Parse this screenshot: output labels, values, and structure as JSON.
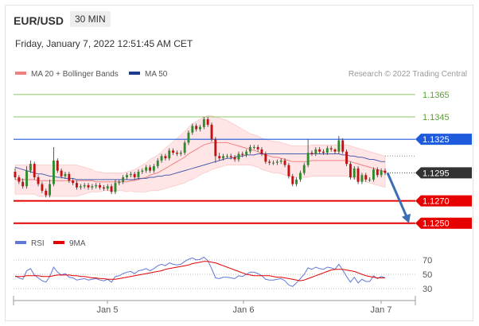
{
  "header": {
    "symbol": "EUR/USD",
    "timeframe": "30 MIN",
    "datetime": "Friday, January 7, 2022 12:51:45 AM CET"
  },
  "colors": {
    "bull": "#2e8b2e",
    "bear": "#c41010",
    "ma20": "#f08080",
    "bollinger_fill": "#ffdcdc",
    "ma50": "#4a5fb0",
    "resistance": "#8cc864",
    "pivot": "#1e5adc",
    "support": "#e60000",
    "current": "#333333",
    "arrow": "#3c6eb4",
    "rsi": "#6078d8",
    "ma9": "#e60000"
  },
  "chart_data": [
    {
      "type": "candlestick",
      "legend": [
        {
          "label": "MA 20 + Bollinger Bands",
          "color": "#f08080"
        },
        {
          "label": "MA 50",
          "color": "#1e3c8c"
        }
      ],
      "credit": "Research © 2022 Trading Central",
      "x_ticks": [
        "Jan 5",
        "Jan 6",
        "Jan 7"
      ],
      "ylim": [
        1.1242,
        1.1377
      ],
      "levels": [
        {
          "value": 1.1365,
          "label": "1.1365",
          "kind": "resistance"
        },
        {
          "value": 1.1345,
          "label": "1.1345",
          "kind": "resistance"
        },
        {
          "value": 1.1325,
          "label": "1.1325",
          "kind": "pivot"
        },
        {
          "value": 1.1295,
          "label": "1.1295",
          "kind": "current"
        },
        {
          "value": 1.127,
          "label": "1.1270",
          "kind": "support"
        },
        {
          "value": 1.125,
          "label": "1.1250",
          "kind": "support"
        }
      ],
      "close": [
        1.1291,
        1.1287,
        1.1283,
        1.1297,
        1.1303,
        1.1291,
        1.1285,
        1.1279,
        1.1275,
        1.1285,
        1.1306,
        1.1297,
        1.1292,
        1.1294,
        1.1288,
        1.1286,
        1.1282,
        1.1283,
        1.1284,
        1.1282,
        1.1283,
        1.1284,
        1.1282,
        1.1281,
        1.1283,
        1.1278,
        1.1286,
        1.1287,
        1.1291,
        1.1293,
        1.1294,
        1.1291,
        1.1296,
        1.1297,
        1.13,
        1.1297,
        1.1301,
        1.1306,
        1.131,
        1.1308,
        1.1315,
        1.1313,
        1.1312,
        1.1313,
        1.1322,
        1.1331,
        1.1337,
        1.1334,
        1.1336,
        1.1343,
        1.1338,
        1.1325,
        1.131,
        1.1308,
        1.131,
        1.131,
        1.1309,
        1.1307,
        1.1312,
        1.1311,
        1.1314,
        1.1318,
        1.1318,
        1.1316,
        1.1312,
        1.1305,
        1.1304,
        1.1304,
        1.1305,
        1.1306,
        1.1302,
        1.1292,
        1.1285,
        1.1289,
        1.1295,
        1.1302,
        1.1313,
        1.1312,
        1.1316,
        1.1314,
        1.1313,
        1.1317,
        1.1316,
        1.1314,
        1.1324,
        1.1314,
        1.1303,
        1.1291,
        1.1299,
        1.1287,
        1.1293,
        1.1289,
        1.1289,
        1.1298,
        1.1293,
        1.1297,
        1.1295
      ],
      "open": [
        1.1296,
        1.1291,
        1.1287,
        1.1283,
        1.1297,
        1.1303,
        1.1291,
        1.1285,
        1.1279,
        1.1275,
        1.1285,
        1.1306,
        1.1297,
        1.1292,
        1.1294,
        1.1288,
        1.1286,
        1.1282,
        1.1283,
        1.1284,
        1.1282,
        1.1283,
        1.1284,
        1.1282,
        1.1281,
        1.1283,
        1.1278,
        1.1286,
        1.1287,
        1.1291,
        1.1293,
        1.1294,
        1.1291,
        1.1296,
        1.1297,
        1.13,
        1.1297,
        1.1301,
        1.1306,
        1.131,
        1.1308,
        1.1315,
        1.1313,
        1.1312,
        1.1313,
        1.1322,
        1.1331,
        1.1337,
        1.1334,
        1.1336,
        1.1343,
        1.1338,
        1.1325,
        1.131,
        1.1308,
        1.131,
        1.131,
        1.1309,
        1.1307,
        1.1312,
        1.1311,
        1.1314,
        1.1318,
        1.1318,
        1.1316,
        1.1312,
        1.1305,
        1.1304,
        1.1304,
        1.1305,
        1.1306,
        1.1302,
        1.1292,
        1.1285,
        1.1289,
        1.1295,
        1.1302,
        1.1313,
        1.1312,
        1.1316,
        1.1314,
        1.1313,
        1.1317,
        1.1316,
        1.1314,
        1.1324,
        1.1314,
        1.1303,
        1.1291,
        1.1299,
        1.1287,
        1.1293,
        1.1289,
        1.1289,
        1.1298,
        1.1293,
        1.1297
      ],
      "high": [
        1.1299,
        1.1293,
        1.129,
        1.1301,
        1.1306,
        1.1305,
        1.1293,
        1.1287,
        1.1281,
        1.1289,
        1.1318,
        1.1308,
        1.1299,
        1.1296,
        1.1296,
        1.129,
        1.1288,
        1.1285,
        1.1286,
        1.1286,
        1.1285,
        1.1286,
        1.1286,
        1.1284,
        1.1285,
        1.1285,
        1.1289,
        1.1289,
        1.1293,
        1.1295,
        1.1296,
        1.1296,
        1.1298,
        1.1299,
        1.1302,
        1.1302,
        1.1303,
        1.1308,
        1.1312,
        1.1312,
        1.1317,
        1.1317,
        1.1315,
        1.1315,
        1.1324,
        1.1333,
        1.1339,
        1.1339,
        1.1338,
        1.1345,
        1.1345,
        1.134,
        1.1327,
        1.1313,
        1.1312,
        1.1312,
        1.1312,
        1.1311,
        1.1314,
        1.1314,
        1.1316,
        1.132,
        1.132,
        1.132,
        1.1318,
        1.1314,
        1.1307,
        1.1306,
        1.1307,
        1.1308,
        1.1308,
        1.1304,
        1.1294,
        1.1291,
        1.1297,
        1.1304,
        1.1325,
        1.1315,
        1.1318,
        1.1318,
        1.1316,
        1.1319,
        1.1319,
        1.1317,
        1.1328,
        1.1326,
        1.1316,
        1.1305,
        1.1301,
        1.1301,
        1.1295,
        1.1295,
        1.1291,
        1.13,
        1.13,
        1.1299,
        1.1299
      ],
      "low": [
        1.1289,
        1.1285,
        1.1281,
        1.1281,
        1.1295,
        1.1289,
        1.1283,
        1.1277,
        1.1273,
        1.1273,
        1.1283,
        1.1295,
        1.129,
        1.129,
        1.1286,
        1.1284,
        1.128,
        1.128,
        1.1281,
        1.128,
        1.128,
        1.1281,
        1.128,
        1.1279,
        1.1279,
        1.1276,
        1.1276,
        1.1284,
        1.1285,
        1.1289,
        1.1291,
        1.1289,
        1.1289,
        1.1294,
        1.1295,
        1.1295,
        1.1295,
        1.1299,
        1.1304,
        1.1306,
        1.1306,
        1.1311,
        1.131,
        1.131,
        1.1311,
        1.132,
        1.1329,
        1.1332,
        1.1332,
        1.1334,
        1.1336,
        1.1323,
        1.1304,
        1.1306,
        1.1306,
        1.1308,
        1.1307,
        1.1305,
        1.1305,
        1.1309,
        1.1309,
        1.1312,
        1.1316,
        1.1314,
        1.131,
        1.1303,
        1.1302,
        1.1302,
        1.1302,
        1.1303,
        1.13,
        1.129,
        1.1283,
        1.1283,
        1.1287,
        1.1293,
        1.13,
        1.131,
        1.131,
        1.1312,
        1.1311,
        1.1311,
        1.1314,
        1.1312,
        1.1312,
        1.1312,
        1.1301,
        1.1289,
        1.1289,
        1.1285,
        1.1285,
        1.1287,
        1.1287,
        1.1287,
        1.1291,
        1.1291,
        1.1293
      ],
      "ma20": [
        1.1289,
        1.1289,
        1.1289,
        1.1289,
        1.1289,
        1.1289,
        1.1288,
        1.1288,
        1.1288,
        1.1288,
        1.1288,
        1.1288,
        1.1288,
        1.1288,
        1.1288,
        1.1288,
        1.1288,
        1.1288,
        1.1288,
        1.1288,
        1.1288,
        1.1287,
        1.1287,
        1.1287,
        1.1287,
        1.1287,
        1.1287,
        1.1287,
        1.1287,
        1.1287,
        1.1288,
        1.1288,
        1.1289,
        1.129,
        1.1291,
        1.1293,
        1.1294,
        1.1295,
        1.1297,
        1.1299,
        1.1301,
        1.1303,
        1.1305,
        1.1307,
        1.1309,
        1.1312,
        1.1314,
        1.1316,
        1.1318,
        1.132,
        1.1321,
        1.1322,
        1.1322,
        1.1322,
        1.1322,
        1.1322,
        1.1321,
        1.132,
        1.1319,
        1.1318,
        1.1317,
        1.1316,
        1.1315,
        1.1314,
        1.1312,
        1.1311,
        1.131,
        1.1309,
        1.1309,
        1.1308,
        1.1307,
        1.1306,
        1.1305,
        1.1305,
        1.1305,
        1.1305,
        1.1305,
        1.1306,
        1.1306,
        1.1306,
        1.1306,
        1.1306,
        1.1306,
        1.1306,
        1.1306,
        1.1306,
        1.1306,
        1.1305,
        1.1304,
        1.1303,
        1.1302,
        1.1301,
        1.13,
        1.1299,
        1.1298,
        1.1297,
        1.1296
      ],
      "bb_width": [
        0.0013,
        0.0013,
        0.0013,
        0.0013,
        0.0013,
        0.0013,
        0.0014,
        0.0014,
        0.0014,
        0.0014,
        0.0014,
        0.0014,
        0.0014,
        0.0014,
        0.0014,
        0.0014,
        0.0014,
        0.0013,
        0.0012,
        0.0011,
        0.001,
        0.0009,
        0.0009,
        0.0008,
        0.0008,
        0.0008,
        0.0008,
        0.0008,
        0.0008,
        0.0009,
        0.0009,
        0.001,
        0.0011,
        0.0012,
        0.0013,
        0.0014,
        0.0015,
        0.0016,
        0.0017,
        0.0018,
        0.0019,
        0.002,
        0.0021,
        0.0022,
        0.0023,
        0.0024,
        0.0025,
        0.0025,
        0.0025,
        0.0025,
        0.0025,
        0.0024,
        0.0023,
        0.0022,
        0.0021,
        0.002,
        0.0019,
        0.0018,
        0.0017,
        0.0016,
        0.0015,
        0.0014,
        0.0014,
        0.0014,
        0.0014,
        0.0014,
        0.0014,
        0.0014,
        0.0014,
        0.0014,
        0.0014,
        0.0014,
        0.0014,
        0.0014,
        0.0014,
        0.0014,
        0.0014,
        0.0014,
        0.0014,
        0.0014,
        0.0014,
        0.0014,
        0.0014,
        0.0014,
        0.0014,
        0.0014,
        0.0014,
        0.0014,
        0.0014,
        0.0014,
        0.0014,
        0.0014,
        0.0014,
        0.0014,
        0.0014,
        0.0014,
        0.0014
      ],
      "ma50": [
        1.13,
        1.1299,
        1.1298,
        1.1297,
        1.1296,
        1.1295,
        1.1294,
        1.1294,
        1.1293,
        1.1292,
        1.1292,
        1.1291,
        1.1291,
        1.129,
        1.129,
        1.129,
        1.1289,
        1.1289,
        1.1289,
        1.1289,
        1.1289,
        1.1289,
        1.1289,
        1.1289,
        1.1289,
        1.1289,
        1.1289,
        1.1289,
        1.1289,
        1.1289,
        1.1289,
        1.1289,
        1.129,
        1.129,
        1.129,
        1.1291,
        1.1291,
        1.1292,
        1.1292,
        1.1293,
        1.1293,
        1.1294,
        1.1295,
        1.1296,
        1.1297,
        1.1298,
        1.1299,
        1.13,
        1.1301,
        1.1302,
        1.1303,
        1.1304,
        1.1305,
        1.1306,
        1.1307,
        1.1308,
        1.1308,
        1.1309,
        1.131,
        1.131,
        1.1311,
        1.1311,
        1.1311,
        1.1312,
        1.1312,
        1.1312,
        1.1312,
        1.1312,
        1.1312,
        1.1312,
        1.1312,
        1.1312,
        1.1312,
        1.1312,
        1.1312,
        1.1312,
        1.1312,
        1.1312,
        1.1312,
        1.1312,
        1.1312,
        1.1312,
        1.1312,
        1.1312,
        1.1312,
        1.1311,
        1.1311,
        1.131,
        1.131,
        1.1309,
        1.1309,
        1.1308,
        1.1307,
        1.1307,
        1.1306,
        1.1305,
        1.1305
      ],
      "forecast": {
        "from": 1.1295,
        "to": 1.125
      }
    },
    {
      "type": "line",
      "legend": [
        {
          "label": "RSI",
          "color": "#6078d8"
        },
        {
          "label": "9MA",
          "color": "#e60000"
        }
      ],
      "y_ticks": [
        70,
        50,
        30
      ],
      "ylim": [
        20,
        80
      ],
      "series": [
        {
          "name": "RSI",
          "values": [
            48,
            45,
            43,
            55,
            58,
            49,
            45,
            41,
            39,
            47,
            60,
            53,
            49,
            51,
            46,
            45,
            42,
            43,
            44,
            42,
            43,
            44,
            42,
            41,
            43,
            39,
            47,
            48,
            51,
            53,
            54,
            51,
            55,
            56,
            58,
            55,
            58,
            62,
            64,
            62,
            66,
            64,
            63,
            64,
            68,
            71,
            73,
            70,
            71,
            74,
            69,
            58,
            45,
            44,
            46,
            46,
            45,
            44,
            48,
            47,
            50,
            53,
            53,
            51,
            48,
            43,
            42,
            42,
            43,
            44,
            41,
            35,
            33,
            38,
            44,
            50,
            59,
            57,
            60,
            58,
            57,
            60,
            59,
            57,
            64,
            56,
            47,
            39,
            46,
            38,
            43,
            40,
            40,
            48,
            44,
            47,
            45
          ]
        },
        {
          "name": "9MA",
          "values": [
            47,
            47,
            47,
            48,
            48,
            48,
            48,
            47,
            47,
            47,
            48,
            49,
            49,
            49,
            49,
            48,
            48,
            47,
            47,
            46,
            45,
            45,
            44,
            44,
            43,
            43,
            43,
            44,
            45,
            46,
            47,
            48,
            49,
            50,
            51,
            52,
            53,
            54,
            55,
            57,
            58,
            59,
            60,
            61,
            62,
            63,
            65,
            66,
            67,
            68,
            68,
            67,
            66,
            64,
            62,
            60,
            58,
            56,
            54,
            52,
            50,
            49,
            48,
            48,
            48,
            48,
            48,
            47,
            46,
            46,
            45,
            44,
            43,
            42,
            41,
            42,
            44,
            46,
            48,
            50,
            52,
            54,
            56,
            57,
            57,
            57,
            56,
            55,
            54,
            52,
            50,
            48,
            47,
            46,
            45,
            45,
            45
          ]
        }
      ]
    }
  ]
}
